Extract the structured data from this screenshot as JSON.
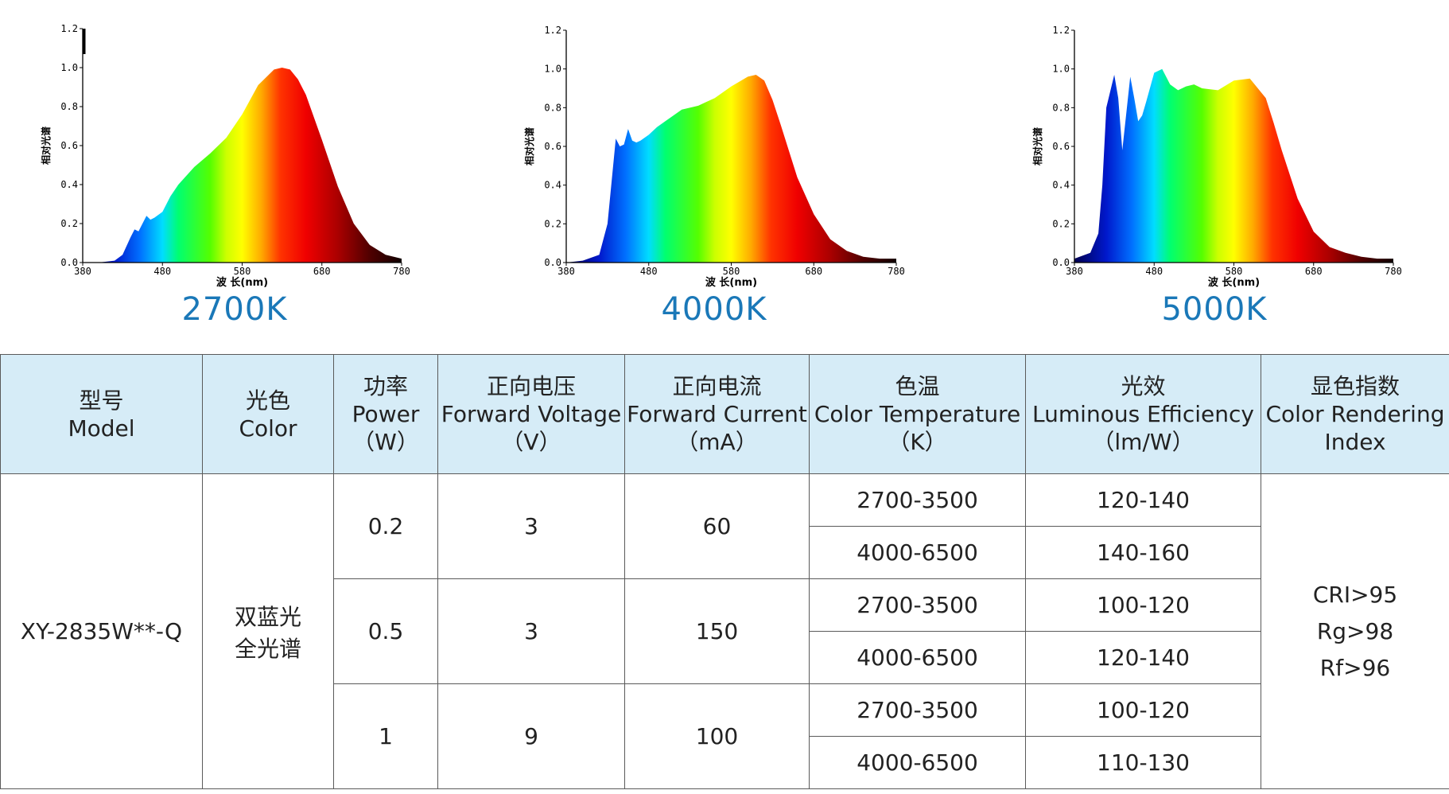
{
  "chart_data": [
    {
      "type": "area",
      "caption": "2700K",
      "ylabel": "相对光谱",
      "xlabel": "波  长(nm)",
      "xlim": [
        380,
        780
      ],
      "ylim": [
        0,
        1.2
      ],
      "xticks": [
        "380",
        "480",
        "580",
        "680",
        "780"
      ],
      "yticks": [
        "0.0",
        "0.2",
        "0.4",
        "0.6",
        "0.8",
        "1.0",
        "1.2"
      ],
      "x": [
        380,
        400,
        420,
        430,
        440,
        445,
        450,
        455,
        460,
        465,
        470,
        480,
        490,
        500,
        520,
        540,
        560,
        580,
        600,
        620,
        630,
        640,
        650,
        660,
        680,
        700,
        720,
        740,
        760,
        780
      ],
      "y": [
        0.0,
        0.0,
        0.01,
        0.04,
        0.13,
        0.17,
        0.16,
        0.2,
        0.24,
        0.22,
        0.23,
        0.26,
        0.34,
        0.4,
        0.49,
        0.56,
        0.64,
        0.76,
        0.91,
        0.99,
        1.0,
        0.99,
        0.94,
        0.86,
        0.63,
        0.39,
        0.2,
        0.09,
        0.04,
        0.02
      ]
    },
    {
      "type": "area",
      "caption": "4000K",
      "ylabel": "相对光谱",
      "xlabel": "波  长(nm)",
      "xlim": [
        380,
        780
      ],
      "ylim": [
        0,
        1.2
      ],
      "xticks": [
        "380",
        "480",
        "580",
        "680",
        "780"
      ],
      "yticks": [
        "0.0",
        "0.2",
        "0.4",
        "0.6",
        "0.8",
        "1.0",
        "1.2"
      ],
      "x": [
        380,
        400,
        420,
        430,
        440,
        445,
        450,
        455,
        460,
        465,
        470,
        480,
        490,
        500,
        520,
        540,
        560,
        580,
        600,
        610,
        620,
        630,
        640,
        660,
        680,
        700,
        720,
        740,
        760,
        780
      ],
      "y": [
        0.0,
        0.01,
        0.04,
        0.2,
        0.64,
        0.6,
        0.61,
        0.69,
        0.63,
        0.62,
        0.63,
        0.66,
        0.7,
        0.73,
        0.79,
        0.81,
        0.85,
        0.91,
        0.96,
        0.97,
        0.94,
        0.84,
        0.71,
        0.44,
        0.25,
        0.12,
        0.06,
        0.03,
        0.02,
        0.02
      ]
    },
    {
      "type": "area",
      "caption": "5000K",
      "ylabel": "相对光谱",
      "xlabel": "波  长(nm)",
      "xlim": [
        380,
        780
      ],
      "ylim": [
        0,
        1.2
      ],
      "xticks": [
        "380",
        "480",
        "580",
        "680",
        "780"
      ],
      "yticks": [
        "0.0",
        "0.2",
        "0.4",
        "0.6",
        "0.8",
        "1.0",
        "1.2"
      ],
      "x": [
        380,
        400,
        410,
        415,
        420,
        430,
        435,
        440,
        450,
        455,
        460,
        465,
        470,
        480,
        490,
        500,
        510,
        520,
        530,
        540,
        560,
        580,
        600,
        620,
        630,
        640,
        660,
        680,
        700,
        720,
        740,
        760,
        780
      ],
      "y": [
        0.02,
        0.05,
        0.15,
        0.4,
        0.8,
        0.97,
        0.85,
        0.58,
        0.96,
        0.85,
        0.73,
        0.76,
        0.83,
        0.98,
        1.0,
        0.92,
        0.89,
        0.91,
        0.92,
        0.9,
        0.89,
        0.94,
        0.95,
        0.85,
        0.72,
        0.58,
        0.33,
        0.16,
        0.08,
        0.05,
        0.03,
        0.02,
        0.02
      ]
    }
  ],
  "table": {
    "headers": [
      {
        "cn": "型号",
        "en": [
          "Model"
        ]
      },
      {
        "cn": "光色",
        "en": [
          "Color"
        ]
      },
      {
        "cn": "功率",
        "en": [
          "Power",
          "（W）"
        ]
      },
      {
        "cn": "正向电压",
        "en": [
          "Forward Voltage",
          "（V）"
        ]
      },
      {
        "cn": "正向电流",
        "en": [
          "Forward Current",
          "（mA）"
        ]
      },
      {
        "cn": "色温",
        "en": [
          "Color Temperature",
          "（K）"
        ]
      },
      {
        "cn": "光效",
        "en": [
          "Luminous Efficiency",
          "（lm/W）"
        ]
      },
      {
        "cn": "显色指数",
        "en": [
          "Color Rendering",
          "Index"
        ]
      }
    ],
    "model": "XY-2835W**-Q",
    "color": [
      "双蓝光",
      "全光谱"
    ],
    "groups": [
      {
        "power": "0.2",
        "voltage": "3",
        "current": "60",
        "rows": [
          {
            "cct": "2700-3500",
            "eff": "120-140"
          },
          {
            "cct": "4000-6500",
            "eff": "140-160"
          }
        ]
      },
      {
        "power": "0.5",
        "voltage": "3",
        "current": "150",
        "rows": [
          {
            "cct": "2700-3500",
            "eff": "100-120"
          },
          {
            "cct": "4000-6500",
            "eff": "120-140"
          }
        ]
      },
      {
        "power": "1",
        "voltage": "9",
        "current": "100",
        "rows": [
          {
            "cct": "2700-3500",
            "eff": "100-120"
          },
          {
            "cct": "4000-6500",
            "eff": "110-130"
          }
        ]
      }
    ],
    "cri": [
      "CRI>95",
      "Rg>98",
      "Rf>96"
    ]
  }
}
